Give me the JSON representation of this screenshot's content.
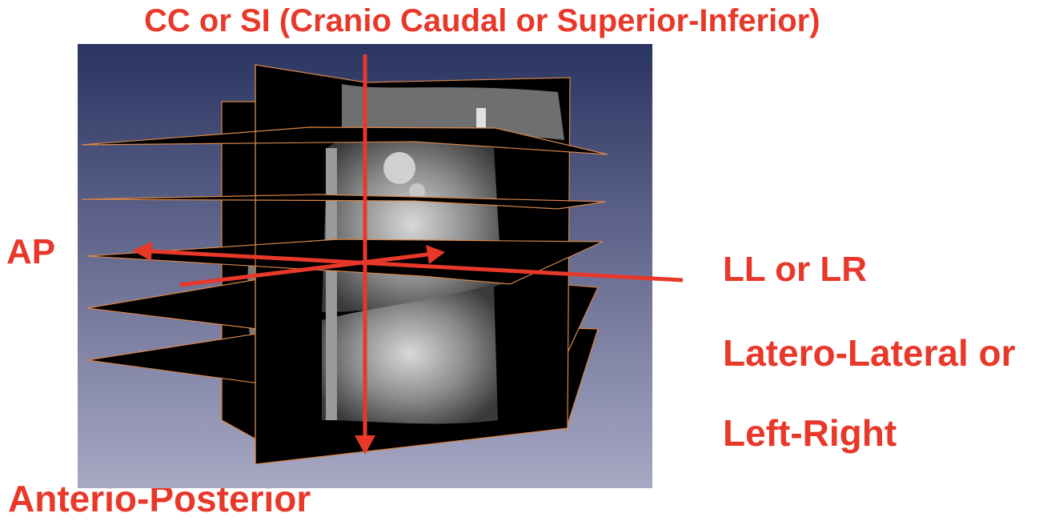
{
  "colors": {
    "label": "#e8382a",
    "arrow": "#e8382a",
    "slice_border": "#d8874a",
    "bg_top": "#2a3461",
    "bg_bottom": "#a8a8c4"
  },
  "labels": {
    "cc_axis": "CC or SI (Cranio Caudal or Superior-Inferior)",
    "ap_axis": "AP",
    "ap_axis_full": "Anterio-Posterior",
    "ll_axis": "LL or LR",
    "ll_axis_full_line1": "Latero-Lateral or",
    "ll_axis_full_line2": "Left-Right"
  }
}
